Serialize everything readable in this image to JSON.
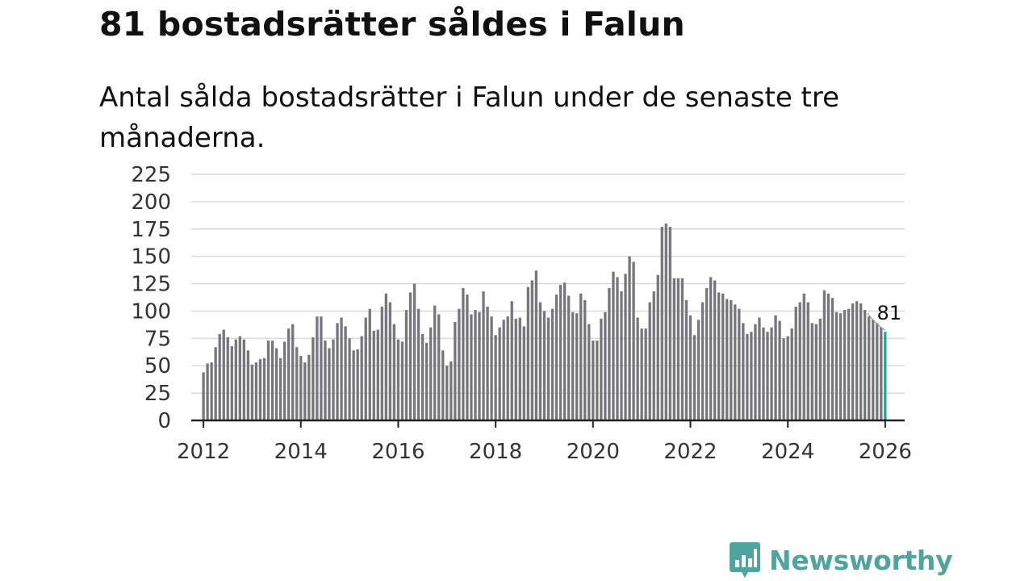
{
  "title": "81 bostadsrätter såldes i Falun",
  "subtitle": "Antal sålda bostadsrätter i Falun under de senaste tre månaderna.",
  "colors": {
    "bar": "#77767b",
    "highlight": "#1aa7a0",
    "grid": "#d9d9d9",
    "axis": "#222222",
    "brand": "#4fa59e"
  },
  "chart_data": {
    "type": "bar",
    "title": "81 bostadsrätter såldes i Falun",
    "xlabel": "",
    "ylabel": "",
    "ylim": [
      0,
      225
    ],
    "yticks": [
      "0",
      "25",
      "50",
      "75",
      "100",
      "125",
      "150",
      "175",
      "200",
      "225"
    ],
    "xlim": [
      2011.75,
      2026.4
    ],
    "xticks": [
      "2012",
      "2014",
      "2016",
      "2018",
      "2020",
      "2022",
      "2024",
      "2026"
    ],
    "grid": true,
    "x_start": 2012.0,
    "x_step_per_bar": 0.08333,
    "series": [
      {
        "name": "Antal sålda bostadsrätter",
        "values": [
          44,
          52,
          53,
          67,
          79,
          83,
          76,
          68,
          74,
          77,
          74,
          64,
          51,
          53,
          56,
          57,
          73,
          73,
          66,
          57,
          72,
          84,
          88,
          67,
          59,
          53,
          60,
          76,
          95,
          95,
          73,
          66,
          74,
          89,
          94,
          86,
          75,
          64,
          65,
          77,
          94,
          102,
          82,
          83,
          104,
          116,
          108,
          88,
          74,
          72,
          101,
          117,
          125,
          102,
          79,
          71,
          85,
          105,
          97,
          64,
          50,
          54,
          90,
          102,
          121,
          115,
          97,
          101,
          99,
          118,
          104,
          95,
          78,
          85,
          92,
          95,
          109,
          93,
          94,
          86,
          122,
          128,
          137,
          108,
          100,
          94,
          102,
          115,
          124,
          126,
          114,
          99,
          98,
          116,
          110,
          88,
          73,
          73,
          93,
          99,
          121,
          136,
          131,
          118,
          134,
          150,
          145,
          94,
          84,
          84,
          108,
          118,
          133,
          177,
          180,
          177,
          130,
          130,
          130,
          110,
          96,
          78,
          92,
          108,
          121,
          131,
          128,
          117,
          116,
          111,
          110,
          106,
          102,
          89,
          79,
          81,
          88,
          94,
          85,
          81,
          85,
          96,
          91,
          75,
          77,
          84,
          104,
          108,
          116,
          108,
          89,
          88,
          93,
          119,
          116,
          112,
          99,
          98,
          101,
          102,
          107,
          109,
          107,
          101,
          95,
          92,
          89,
          85,
          81
        ]
      }
    ],
    "annotation": {
      "label": "81",
      "value": 81
    }
  },
  "logo": {
    "name": "Newsworthy"
  }
}
